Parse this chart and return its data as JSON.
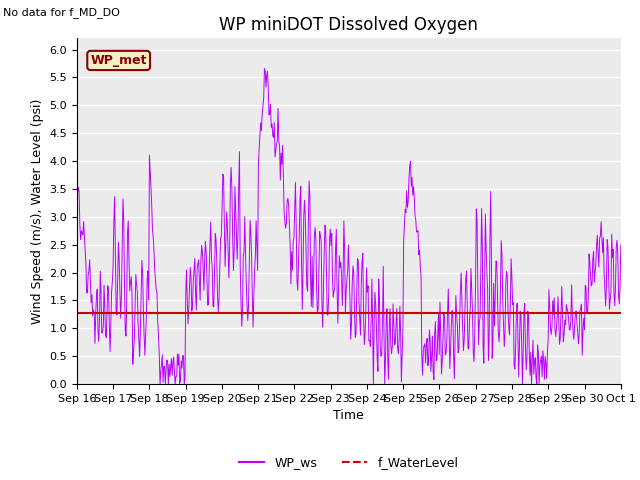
{
  "title": "WP miniDOT Dissolved Oxygen",
  "no_data_text": "No data for f_MD_DO",
  "ylabel": "Wind Speed (m/s), Water Level (psi)",
  "xlabel": "Time",
  "ylim": [
    0.0,
    6.2
  ],
  "yticks": [
    0.0,
    0.5,
    1.0,
    1.5,
    2.0,
    2.5,
    3.0,
    3.5,
    4.0,
    4.5,
    5.0,
    5.5,
    6.0
  ],
  "water_level": 1.27,
  "wp_met_label": "WP_met",
  "legend_ws_label": "WP_ws",
  "legend_wl_label": "f_WaterLevel",
  "ws_color": "#BB00FF",
  "wl_color": "#CC0000",
  "plot_bg_color": "#EBEBEB",
  "fig_bg_color": "#FFFFFF",
  "wp_met_box_facecolor": "#F5F0C8",
  "wp_met_box_edgecolor": "#8B0000",
  "title_fontsize": 12,
  "label_fontsize": 9,
  "tick_fontsize": 8,
  "xtick_labels": [
    "Sep 16",
    "Sep 17",
    "Sep 18",
    "Sep 19",
    "Sep 20",
    "Sep 21",
    "Sep 22",
    "Sep 23",
    "Sep 24",
    "Sep 25",
    "Sep 26",
    "Sep 27",
    "Sep 28",
    "Sep 29",
    "Sep 30",
    "Oct 1"
  ]
}
